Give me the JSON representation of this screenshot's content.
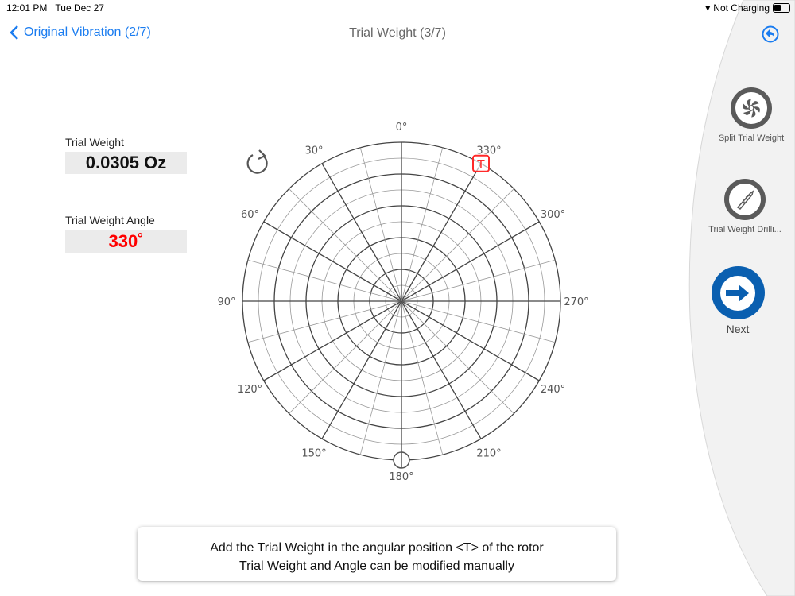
{
  "status_bar": {
    "time": "12:01 PM",
    "date": "Tue Dec 27",
    "charging": "Not Charging"
  },
  "nav": {
    "back_label": "Original Vibration (2/7)",
    "title": "Trial Weight (3/7)"
  },
  "fields": {
    "trial_weight_label": "Trial Weight",
    "trial_weight_value": "0.0305 Oz",
    "angle_label": "Trial Weight Angle",
    "angle_value": "330˚"
  },
  "polar": {
    "angle_labels": [
      "0°",
      "30°",
      "60°",
      "90°",
      "120°",
      "150°",
      "180°",
      "210°",
      "240°",
      "270°",
      "300°",
      "330°"
    ],
    "marker_label": "T",
    "marker_angle": 330,
    "marker_color": "#ff2a2a"
  },
  "sidebar": {
    "split_label": "Split Trial Weight",
    "drilling_label": "Trial Weight Drilli...",
    "next_label": "Next"
  },
  "message": {
    "line1": "Add the Trial Weight in the angular position <T> of the rotor",
    "line2": "Trial Weight and Angle can be modified manually"
  },
  "colors": {
    "accent": "#1a7cf0",
    "next": "#0a5fb0",
    "angle_value": "#ff0000"
  }
}
